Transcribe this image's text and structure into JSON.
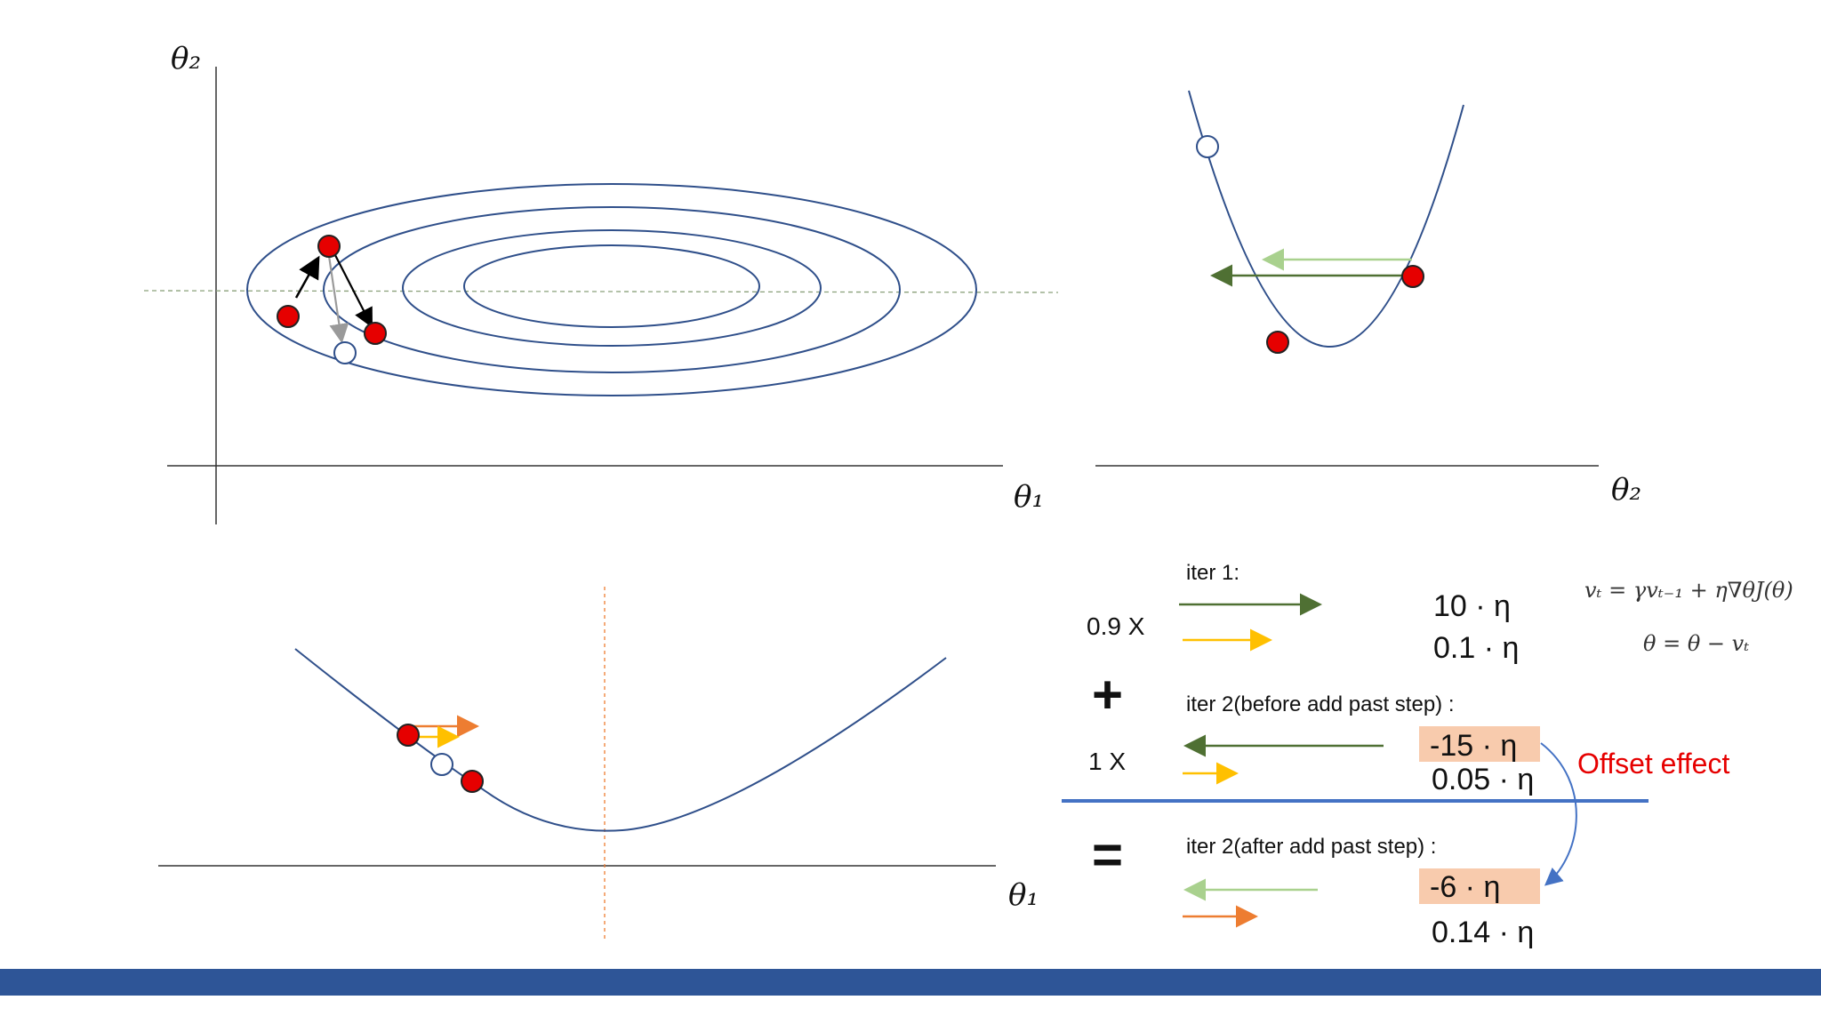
{
  "colors": {
    "contour": "#2f4f8a",
    "red_point": "#e60000",
    "dark_green": "#4f7033",
    "light_green": "#a9d18e",
    "yellow": "#ffc000",
    "orange": "#ed7d31",
    "highlight": "#f8cbad",
    "divider": "#4472c4",
    "offset_text": "#e60000",
    "footer": "#2e5597"
  },
  "top_left": {
    "axis_y_label": "θ₂",
    "axis_x_label": "θ₁"
  },
  "top_right": {
    "axis_x_label": "θ₂"
  },
  "bottom_left": {
    "axis_x_label": "θ₁"
  },
  "calc": {
    "iter1_label": "iter 1:",
    "coef_09": "0.9 X",
    "iter1_val1": "10 · η",
    "iter1_val2": "0.1 · η",
    "plus_sign": "+",
    "iter2_before_label": "iter 2(before add past step) :",
    "coef_1": "1 X",
    "iter2_before_val1": "-15 · η",
    "iter2_before_val2": "0.05 · η",
    "offset_effect": "Offset effect",
    "equals_sign": "=",
    "iter2_after_label": "iter 2(after add past step) :",
    "iter2_after_val1": "-6 · η",
    "iter2_after_val2": "0.14 · η"
  },
  "formula": {
    "line1": "vₜ = γvₜ₋₁ + η∇θJ(θ)",
    "line2": "θ = θ − vₜ"
  }
}
